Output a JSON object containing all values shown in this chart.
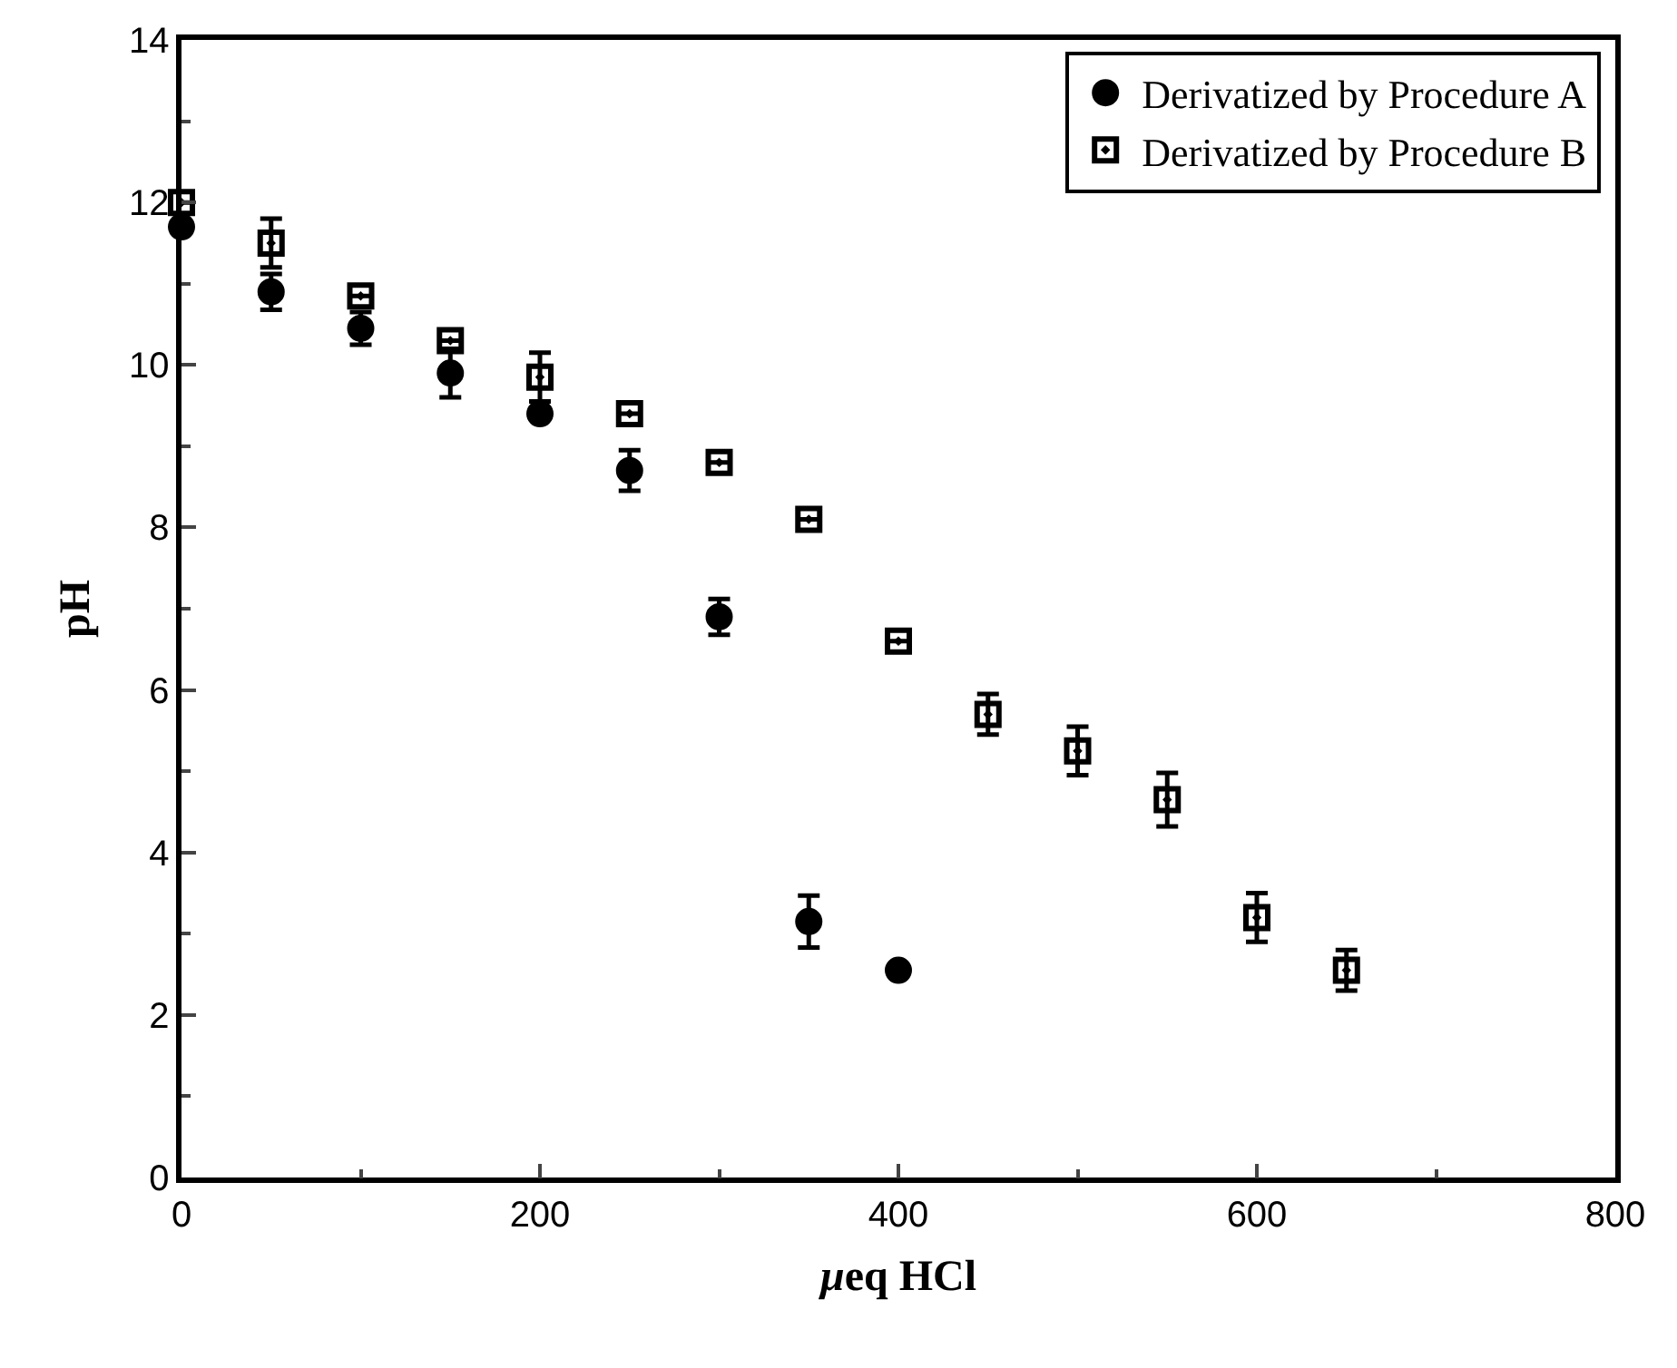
{
  "chart_data": {
    "type": "scatter",
    "xlabel": "μeq HCl",
    "ylabel": "pH",
    "xlim": [
      0,
      800
    ],
    "xticks": [
      0,
      200,
      400,
      600,
      800
    ],
    "ylim": [
      0,
      14
    ],
    "yticks": [
      0,
      2,
      4,
      6,
      8,
      10,
      12,
      14
    ],
    "legend": "top right",
    "series": [
      {
        "name": "Derivatized by Procedure A",
        "color": "#000000",
        "marker": "circle",
        "x": [
          0,
          50,
          100,
          150,
          200,
          250,
          300,
          350,
          400
        ],
        "values": [
          11.7,
          10.9,
          10.45,
          9.9,
          9.4,
          8.7,
          6.9,
          3.15,
          2.55
        ],
        "errors": [
          null,
          0.22,
          0.2,
          0.3,
          null,
          0.25,
          0.22,
          0.32,
          null
        ]
      },
      {
        "name": "Derivatized by Procedure B",
        "color": "#000000",
        "marker": "square",
        "x": [
          0,
          50,
          100,
          150,
          200,
          250,
          300,
          350,
          400,
          450,
          500,
          550,
          600,
          650
        ],
        "values": [
          12.0,
          11.5,
          10.85,
          10.3,
          9.85,
          9.4,
          8.8,
          8.1,
          6.6,
          5.7,
          5.25,
          4.65,
          3.2,
          2.55
        ],
        "errors": [
          null,
          0.3,
          null,
          null,
          0.3,
          null,
          null,
          null,
          null,
          0.25,
          0.3,
          0.33,
          0.3,
          0.25
        ]
      }
    ]
  }
}
